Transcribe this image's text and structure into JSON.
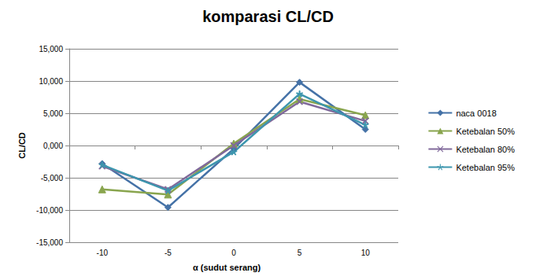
{
  "chart_data": {
    "type": "line",
    "title": "komparasi CL/CD",
    "x_label": "α (sudut serang)",
    "y_label": "CL/CD",
    "categories": [
      "-10",
      "-5",
      "0",
      "5",
      "10"
    ],
    "series": [
      {
        "name": "naca 0018",
        "color": "#4572a7",
        "marker": "diamond",
        "values": [
          -2.8,
          -9.6,
          -0.5,
          9.8,
          2.5
        ]
      },
      {
        "name": "Ketebalan 50%",
        "color": "#89a54e",
        "marker": "triangle",
        "values": [
          -6.8,
          -7.6,
          0.3,
          7.2,
          4.7
        ]
      },
      {
        "name": "Ketebalan 80%",
        "color": "#80699b",
        "marker": "x",
        "values": [
          -3.2,
          -6.8,
          0.0,
          6.8,
          3.8
        ]
      },
      {
        "name": "Ketebalan 95%",
        "color": "#3d96ae",
        "marker": "star",
        "values": [
          -3.0,
          -7.0,
          -1.0,
          8.0,
          3.2
        ]
      }
    ],
    "ylim": [
      -15,
      15
    ],
    "yticks": [
      {
        "value": -15,
        "label": "-15,000"
      },
      {
        "value": -10,
        "label": "-10,000"
      },
      {
        "value": -5,
        "label": "-5,000"
      },
      {
        "value": 0,
        "label": "0,000"
      },
      {
        "value": 5,
        "label": "5,000"
      },
      {
        "value": 10,
        "label": "10,000"
      },
      {
        "value": 15,
        "label": "15,000"
      }
    ],
    "grid": true,
    "legend": "right"
  }
}
